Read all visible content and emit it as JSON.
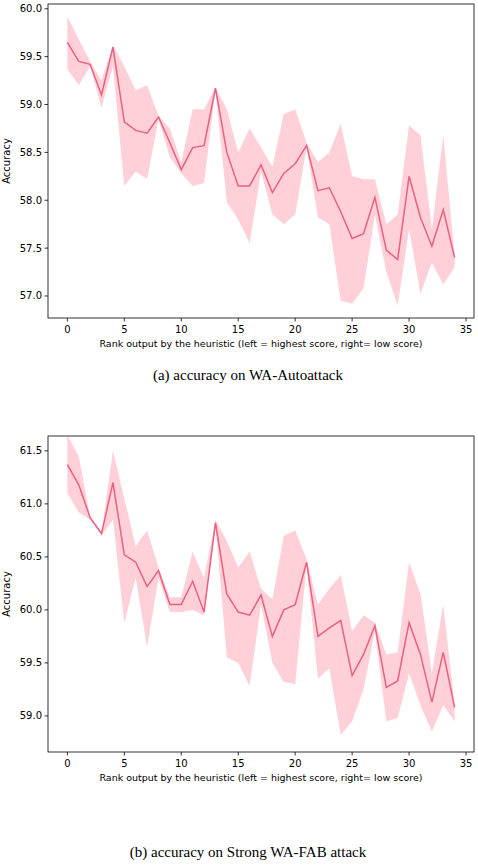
{
  "chart_data": [
    {
      "type": "line",
      "caption": "(a) accuracy on WA-Autoattack",
      "x_label": "Rank output by the heuristic (left = highest score, right= low score)",
      "y_label": "Accuracy",
      "x": [
        0,
        1,
        2,
        3,
        4,
        5,
        6,
        7,
        8,
        9,
        10,
        11,
        12,
        13,
        14,
        15,
        16,
        17,
        18,
        19,
        20,
        21,
        22,
        23,
        24,
        25,
        26,
        27,
        28,
        29,
        30,
        31,
        32,
        33,
        34
      ],
      "series": [
        {
          "color": "#e8617e",
          "values": [
            59.65,
            59.45,
            59.42,
            59.1,
            59.6,
            58.82,
            58.73,
            58.7,
            58.87,
            58.6,
            58.32,
            58.55,
            58.57,
            59.17,
            58.5,
            58.15,
            58.15,
            58.37,
            58.08,
            58.28,
            58.38,
            58.57,
            58.1,
            58.13,
            57.88,
            57.6,
            57.65,
            58.03,
            57.48,
            57.38,
            58.25,
            57.82,
            57.52,
            57.9,
            57.4
          ],
          "lower": [
            59.37,
            59.2,
            59.4,
            58.97,
            59.4,
            58.15,
            58.3,
            58.22,
            58.85,
            58.45,
            58.28,
            58.15,
            58.18,
            59.15,
            57.98,
            57.8,
            57.55,
            58.3,
            57.85,
            57.75,
            57.85,
            58.55,
            57.82,
            57.75,
            56.95,
            56.92,
            57.08,
            57.85,
            57.25,
            56.9,
            57.7,
            57.02,
            57.35,
            57.12,
            57.3
          ],
          "upper": [
            59.92,
            59.68,
            59.45,
            59.25,
            59.62,
            59.4,
            59.15,
            59.2,
            58.88,
            58.75,
            58.4,
            58.95,
            58.95,
            59.18,
            58.95,
            58.5,
            58.75,
            58.55,
            58.35,
            58.9,
            58.95,
            58.6,
            58.4,
            58.5,
            58.8,
            58.25,
            58.22,
            58.22,
            57.75,
            57.85,
            58.78,
            58.68,
            57.7,
            58.68,
            57.42
          ]
        }
      ],
      "xlim": [
        -1.7,
        35.7
      ],
      "xticks": [
        0,
        5,
        10,
        15,
        20,
        25,
        30,
        35
      ],
      "ylim": [
        56.77,
        60.05
      ],
      "yticks": [
        {
          "value": 57,
          "label": "57.0"
        },
        57.5,
        {
          "value": 58,
          "label": "58.0"
        },
        58.5,
        {
          "value": 59,
          "label": "59.0"
        },
        59.5,
        {
          "value": 60,
          "label": "60.0"
        }
      ]
    },
    {
      "type": "line",
      "caption": "(b) accuracy on Strong WA-FAB attack",
      "x_label": "Rank output by the heuristic (left = highest score, right= low score)",
      "y_label": "Accuracy",
      "x": [
        0,
        1,
        2,
        3,
        4,
        5,
        6,
        7,
        8,
        9,
        10,
        11,
        12,
        13,
        14,
        15,
        16,
        17,
        18,
        19,
        20,
        21,
        22,
        23,
        24,
        25,
        26,
        27,
        28,
        29,
        30,
        31,
        32,
        33,
        34
      ],
      "series": [
        {
          "color": "#e8617e",
          "values": [
            61.37,
            61.18,
            60.87,
            60.72,
            61.2,
            60.52,
            60.45,
            60.22,
            60.37,
            60.05,
            60.05,
            60.27,
            59.98,
            60.82,
            60.15,
            59.98,
            59.95,
            60.14,
            59.75,
            60.0,
            60.05,
            60.45,
            59.75,
            59.83,
            59.9,
            59.38,
            59.58,
            59.85,
            59.27,
            59.33,
            59.88,
            59.58,
            59.13,
            59.6,
            59.08
          ],
          "lower": [
            61.1,
            60.92,
            60.85,
            60.7,
            60.85,
            59.88,
            60.3,
            59.65,
            60.3,
            59.98,
            59.98,
            60.0,
            59.95,
            60.8,
            59.55,
            59.5,
            59.28,
            60.05,
            59.5,
            59.32,
            59.3,
            60.42,
            59.35,
            59.45,
            58.82,
            58.95,
            59.25,
            59.8,
            58.95,
            58.98,
            59.4,
            59.1,
            58.85,
            59.1,
            58.95
          ],
          "upper": [
            61.65,
            61.45,
            60.88,
            60.73,
            61.5,
            61.05,
            60.6,
            60.75,
            60.4,
            60.12,
            60.12,
            60.55,
            60.3,
            60.85,
            60.65,
            60.4,
            60.55,
            60.2,
            60.1,
            60.7,
            60.75,
            60.48,
            60.05,
            60.2,
            60.33,
            59.8,
            59.95,
            59.88,
            59.58,
            59.6,
            60.45,
            60.15,
            59.4,
            60.05,
            59.1
          ]
        }
      ],
      "xlim": [
        -1.7,
        35.7
      ],
      "xticks": [
        0,
        5,
        10,
        15,
        20,
        25,
        30,
        35
      ],
      "ylim": [
        58.66,
        61.64
      ],
      "yticks": [
        {
          "value": 59,
          "label": "59.0"
        },
        59.5,
        {
          "value": 60,
          "label": "60.0"
        },
        60.5,
        {
          "value": 61,
          "label": "61.0"
        },
        61.5
      ]
    }
  ]
}
